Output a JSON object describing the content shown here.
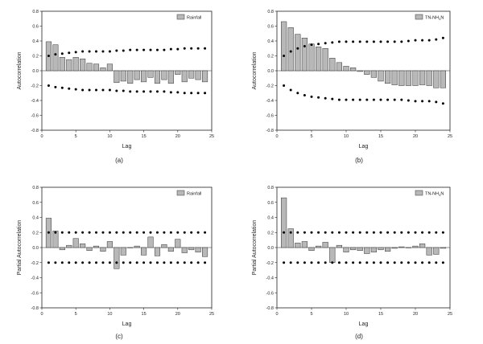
{
  "chart_data": [
    {
      "type": "bar",
      "panel_label": "(a)",
      "legend": "Rainfall",
      "xlabel": "Lag",
      "ylabel": "Autocorrelation",
      "xlim": [
        0,
        25
      ],
      "ylim": [
        -0.8,
        0.8
      ],
      "x_ticks": [
        "0",
        "5",
        "10",
        "15",
        "20",
        "25"
      ],
      "y_ticks": [
        "0.8",
        "0.6",
        "0.4",
        "0.2",
        "0.0",
        "-0.2",
        "-0.4",
        "-0.6",
        "-0.8"
      ],
      "lags": [
        1,
        2,
        3,
        4,
        5,
        6,
        7,
        8,
        9,
        10,
        11,
        12,
        13,
        14,
        15,
        16,
        17,
        18,
        19,
        20,
        21,
        22,
        23,
        24
      ],
      "values": [
        0.39,
        0.35,
        0.18,
        0.15,
        0.18,
        0.16,
        0.1,
        0.09,
        0.04,
        0.09,
        -0.16,
        -0.14,
        -0.17,
        -0.12,
        -0.15,
        -0.09,
        -0.17,
        -0.12,
        -0.17,
        -0.05,
        -0.15,
        -0.1,
        -0.12,
        -0.15
      ],
      "upper_bound": [
        0.2,
        0.22,
        0.23,
        0.24,
        0.25,
        0.26,
        0.26,
        0.26,
        0.26,
        0.26,
        0.27,
        0.27,
        0.28,
        0.28,
        0.28,
        0.28,
        0.28,
        0.28,
        0.29,
        0.29,
        0.3,
        0.3,
        0.3,
        0.3
      ],
      "lower_bound": [
        -0.2,
        -0.22,
        -0.23,
        -0.24,
        -0.25,
        -0.26,
        -0.26,
        -0.26,
        -0.26,
        -0.26,
        -0.27,
        -0.27,
        -0.28,
        -0.28,
        -0.28,
        -0.28,
        -0.28,
        -0.28,
        -0.29,
        -0.29,
        -0.3,
        -0.3,
        -0.3,
        -0.3
      ]
    },
    {
      "type": "bar",
      "panel_label": "(b)",
      "legend": "TN-NH",
      "legend_sub": "3",
      "legend_tail": "N",
      "xlabel": "Lag",
      "ylabel": "Autocorrelation",
      "xlim": [
        0,
        25
      ],
      "ylim": [
        -0.8,
        0.8
      ],
      "x_ticks": [
        "0",
        "5",
        "10",
        "15",
        "20",
        "25"
      ],
      "y_ticks": [
        "0.8",
        "0.6",
        "0.4",
        "0.2",
        "0.0",
        "-0.2",
        "-0.4",
        "-0.6",
        "-0.8"
      ],
      "lags": [
        1,
        2,
        3,
        4,
        5,
        6,
        7,
        8,
        9,
        10,
        11,
        12,
        13,
        14,
        15,
        16,
        17,
        18,
        19,
        20,
        21,
        22,
        23,
        24
      ],
      "values": [
        0.66,
        0.58,
        0.49,
        0.44,
        0.36,
        0.32,
        0.3,
        0.17,
        0.11,
        0.06,
        0.04,
        -0.01,
        -0.05,
        -0.09,
        -0.14,
        -0.17,
        -0.19,
        -0.2,
        -0.2,
        -0.2,
        -0.19,
        -0.2,
        -0.23,
        -0.23
      ],
      "upper_bound": [
        0.2,
        0.26,
        0.3,
        0.33,
        0.35,
        0.36,
        0.37,
        0.38,
        0.39,
        0.39,
        0.39,
        0.39,
        0.39,
        0.39,
        0.39,
        0.39,
        0.39,
        0.39,
        0.4,
        0.41,
        0.41,
        0.41,
        0.42,
        0.44
      ],
      "lower_bound": [
        -0.2,
        -0.26,
        -0.3,
        -0.33,
        -0.35,
        -0.36,
        -0.37,
        -0.38,
        -0.39,
        -0.39,
        -0.39,
        -0.39,
        -0.39,
        -0.39,
        -0.39,
        -0.39,
        -0.39,
        -0.39,
        -0.4,
        -0.41,
        -0.41,
        -0.41,
        -0.42,
        -0.44
      ]
    },
    {
      "type": "bar",
      "panel_label": "(c)",
      "legend": "Rainfall",
      "xlabel": "Lag",
      "ylabel": "Partial Autocorrelation",
      "xlim": [
        0,
        25
      ],
      "ylim": [
        -0.8,
        0.8
      ],
      "x_ticks": [
        "0",
        "5",
        "10",
        "15",
        "20",
        "25"
      ],
      "y_ticks": [
        "0.8",
        "0.6",
        "0.4",
        "0.2",
        "0.0",
        "-0.2",
        "-0.4",
        "-0.6",
        "-0.8"
      ],
      "lags": [
        1,
        2,
        3,
        4,
        5,
        6,
        7,
        8,
        9,
        10,
        11,
        12,
        13,
        14,
        15,
        16,
        17,
        18,
        19,
        20,
        21,
        22,
        23,
        24
      ],
      "values": [
        0.39,
        0.22,
        -0.03,
        0.03,
        0.12,
        0.05,
        -0.04,
        0.02,
        -0.05,
        0.08,
        -0.28,
        -0.1,
        0.0,
        0.02,
        -0.1,
        0.14,
        -0.11,
        0.04,
        -0.05,
        0.11,
        -0.07,
        -0.03,
        -0.06,
        -0.12
      ],
      "upper_bound": [
        0.2,
        0.2,
        0.2,
        0.2,
        0.2,
        0.2,
        0.2,
        0.2,
        0.2,
        0.2,
        0.2,
        0.2,
        0.2,
        0.2,
        0.2,
        0.2,
        0.2,
        0.2,
        0.2,
        0.2,
        0.2,
        0.2,
        0.2,
        0.2
      ],
      "lower_bound": [
        -0.2,
        -0.2,
        -0.2,
        -0.2,
        -0.2,
        -0.2,
        -0.2,
        -0.2,
        -0.2,
        -0.2,
        -0.2,
        -0.2,
        -0.2,
        -0.2,
        -0.2,
        -0.2,
        -0.2,
        -0.2,
        -0.2,
        -0.2,
        -0.2,
        -0.2,
        -0.2,
        -0.2
      ]
    },
    {
      "type": "bar",
      "panel_label": "(d)",
      "legend": "TN-NH",
      "legend_sub": "3",
      "legend_tail": "N",
      "xlabel": "Lag",
      "ylabel": "Partial Autocorrelation",
      "xlim": [
        0,
        25
      ],
      "ylim": [
        -0.8,
        0.8
      ],
      "x_ticks": [
        "0",
        "5",
        "10",
        "15",
        "20",
        "25"
      ],
      "y_ticks": [
        "0.8",
        "0.6",
        "0.4",
        "0.2",
        "0.0",
        "-0.2",
        "-0.4",
        "-0.6",
        "-0.8"
      ],
      "lags": [
        1,
        2,
        3,
        4,
        5,
        6,
        7,
        8,
        9,
        10,
        11,
        12,
        13,
        14,
        15,
        16,
        17,
        18,
        19,
        20,
        21,
        22,
        23,
        24
      ],
      "values": [
        0.66,
        0.25,
        0.06,
        0.08,
        -0.04,
        0.02,
        0.07,
        -0.2,
        0.03,
        -0.06,
        -0.03,
        -0.04,
        -0.08,
        -0.06,
        -0.03,
        -0.05,
        -0.01,
        0.01,
        0.0,
        0.02,
        0.05,
        -0.1,
        -0.09,
        -0.01
      ],
      "upper_bound": [
        0.2,
        0.2,
        0.2,
        0.2,
        0.2,
        0.2,
        0.2,
        0.2,
        0.2,
        0.2,
        0.2,
        0.2,
        0.2,
        0.2,
        0.2,
        0.2,
        0.2,
        0.2,
        0.2,
        0.2,
        0.2,
        0.2,
        0.2,
        0.2
      ],
      "lower_bound": [
        -0.2,
        -0.2,
        -0.2,
        -0.2,
        -0.2,
        -0.2,
        -0.2,
        -0.2,
        -0.2,
        -0.2,
        -0.2,
        -0.2,
        -0.2,
        -0.2,
        -0.2,
        -0.2,
        -0.2,
        -0.2,
        -0.2,
        -0.2,
        -0.2,
        -0.2,
        -0.2,
        -0.2
      ]
    }
  ],
  "colors": {
    "bar_fill": "#b8b8b8",
    "bar_stroke": "#333333",
    "axis": "#222222",
    "dot": "#000000"
  }
}
